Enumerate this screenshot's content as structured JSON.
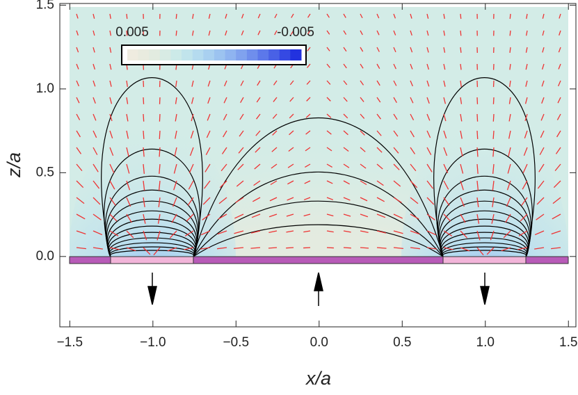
{
  "chart_data": {
    "type": "contour",
    "xlabel": "x/a",
    "ylabel": "z/a",
    "xlim": [
      -1.56,
      1.545
    ],
    "ylim": [
      -0.42,
      1.51
    ],
    "xticks": [
      {
        "value": -1.5,
        "label": "−1.5"
      },
      {
        "value": -1,
        "label": "−1.0"
      },
      {
        "value": -0.5,
        "label": "−0.5"
      },
      {
        "value": 0,
        "label": "0.0"
      },
      {
        "value": 0.5,
        "label": "0.5"
      },
      {
        "value": 1,
        "label": "1.0"
      },
      {
        "value": 1.5,
        "label": "1.5"
      }
    ],
    "yticks": [
      {
        "value": 0,
        "label": "0.0"
      },
      {
        "value": 0.5,
        "label": "0.5"
      },
      {
        "value": 1,
        "label": "1.0"
      },
      {
        "value": 1.5,
        "label": "1.5"
      }
    ],
    "colorbar_labels": [
      "0.005",
      "-0.005"
    ],
    "colorbar_colors": [
      "#efece0",
      "#e9ebdf",
      "#e2ebe0",
      "#d8ebe4",
      "#cceae8",
      "#c1e4ec",
      "#b5dbef",
      "#a9d0f0",
      "#9cc3f0",
      "#8fb4f0",
      "#80a2ee",
      "#6f8eec",
      "#5c78ea",
      "#4961e6",
      "#3549e3",
      "#2232df"
    ]
  }
}
